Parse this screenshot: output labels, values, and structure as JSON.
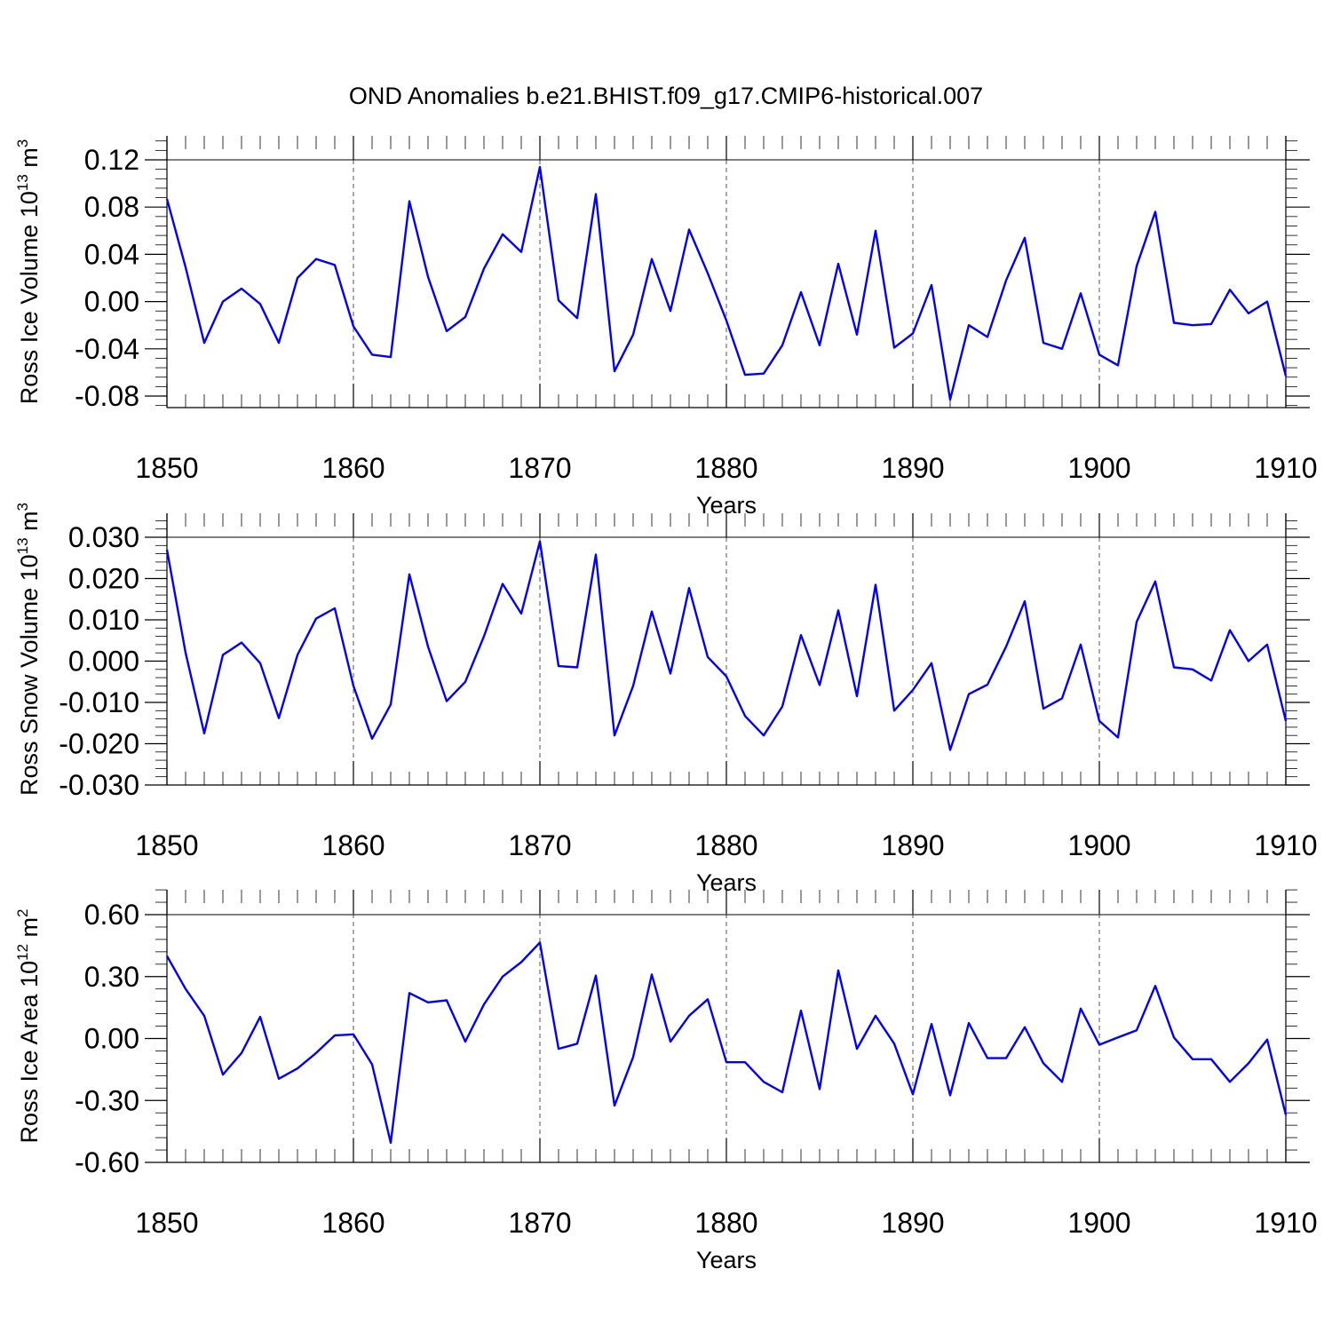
{
  "title": "OND Anomalies b.e21.BHIST.f09_g17.CMIP6-historical.007",
  "colors": {
    "line": "#0000ff",
    "axis": "#000000",
    "grid": "#555555"
  },
  "chart_data": [
    {
      "type": "line",
      "ylabel_main": "Ross Ice Volume 10",
      "ylabel_exp": "13",
      "ylabel_unit": "m",
      "ylabel_unit_exp": "3",
      "xlabel": "Years",
      "xlim": [
        1850,
        1910
      ],
      "ylim": [
        -0.09,
        0.13
      ],
      "xticks": [
        1850,
        1860,
        1870,
        1880,
        1890,
        1900,
        1910
      ],
      "yticks": [
        -0.08,
        -0.04,
        0.0,
        0.04,
        0.08,
        0.12
      ],
      "ytick_labels": [
        "-0.08",
        "-0.04",
        "0.00",
        "0.04",
        "0.08",
        "0.12"
      ],
      "x": [
        1850,
        1851,
        1852,
        1853,
        1854,
        1855,
        1856,
        1857,
        1858,
        1859,
        1860,
        1861,
        1862,
        1863,
        1864,
        1865,
        1866,
        1867,
        1868,
        1869,
        1870,
        1871,
        1872,
        1873,
        1874,
        1875,
        1876,
        1877,
        1878,
        1879,
        1880,
        1881,
        1882,
        1883,
        1884,
        1885,
        1886,
        1887,
        1888,
        1889,
        1890,
        1891,
        1892,
        1893,
        1894,
        1895,
        1896,
        1897,
        1898,
        1899,
        1900,
        1901,
        1902,
        1903,
        1904,
        1905,
        1906,
        1907,
        1908,
        1909,
        1910
      ],
      "values": [
        0.087,
        0.029,
        -0.035,
        0.0,
        0.011,
        -0.002,
        -0.035,
        0.02,
        0.036,
        0.031,
        -0.021,
        -0.045,
        -0.047,
        0.085,
        0.021,
        -0.025,
        -0.013,
        0.028,
        0.057,
        0.042,
        0.114,
        0.001,
        -0.014,
        0.091,
        -0.059,
        -0.028,
        0.036,
        -0.008,
        0.061,
        0.024,
        -0.016,
        -0.062,
        -0.061,
        -0.037,
        0.008,
        -0.037,
        0.032,
        -0.028,
        0.06,
        -0.039,
        -0.027,
        0.014,
        -0.083,
        -0.02,
        -0.03,
        0.018,
        0.054,
        -0.035,
        -0.04,
        0.007,
        -0.045,
        -0.054,
        0.03,
        0.076,
        -0.018,
        -0.02,
        -0.019,
        0.01,
        -0.01,
        0.0,
        -0.063
      ]
    },
    {
      "type": "line",
      "ylabel_main": "Ross Snow Volume 10",
      "ylabel_exp": "13",
      "ylabel_unit": "m",
      "ylabel_unit_exp": "3",
      "xlabel": "Years",
      "xlim": [
        1850,
        1910
      ],
      "ylim": [
        -0.0335,
        0.03
      ],
      "xticks": [
        1850,
        1860,
        1870,
        1880,
        1890,
        1900,
        1910
      ],
      "yticks": [
        -0.03,
        -0.02,
        -0.01,
        0.0,
        0.01,
        0.02,
        0.03
      ],
      "ytick_labels": [
        "-0.030",
        "-0.020",
        "-0.010",
        "0.000",
        "0.010",
        "0.020",
        "0.030"
      ],
      "x": [
        1850,
        1851,
        1852,
        1853,
        1854,
        1855,
        1856,
        1857,
        1858,
        1859,
        1860,
        1861,
        1862,
        1863,
        1864,
        1865,
        1866,
        1867,
        1868,
        1869,
        1870,
        1871,
        1872,
        1873,
        1874,
        1875,
        1876,
        1877,
        1878,
        1879,
        1880,
        1881,
        1882,
        1883,
        1884,
        1885,
        1886,
        1887,
        1888,
        1889,
        1890,
        1891,
        1892,
        1893,
        1894,
        1895,
        1896,
        1897,
        1898,
        1899,
        1900,
        1901,
        1902,
        1903,
        1904,
        1905,
        1906,
        1907,
        1908,
        1909,
        1910
      ],
      "values": [
        0.027,
        0.002,
        -0.0175,
        0.0015,
        0.0045,
        -0.0005,
        -0.0138,
        0.0015,
        0.0103,
        0.0128,
        -0.006,
        -0.0188,
        -0.0105,
        0.021,
        0.0035,
        -0.0097,
        -0.005,
        0.006,
        0.0187,
        0.0115,
        0.029,
        -0.0012,
        -0.0015,
        0.0258,
        -0.018,
        -0.006,
        0.012,
        -0.003,
        0.0177,
        0.001,
        -0.0037,
        -0.0133,
        -0.018,
        -0.011,
        0.0063,
        -0.0058,
        0.0123,
        -0.0085,
        0.0185,
        -0.012,
        -0.007,
        -0.0005,
        -0.0215,
        -0.008,
        -0.0057,
        0.0035,
        0.0145,
        -0.0115,
        -0.009,
        0.004,
        -0.0145,
        -0.0185,
        0.0095,
        0.0193,
        -0.0015,
        -0.002,
        -0.0047,
        0.0075,
        0.0,
        0.004,
        -0.0145
      ]
    },
    {
      "type": "line",
      "ylabel_main": "Ross Ice Area 10",
      "ylabel_exp": "12",
      "ylabel_unit": "m",
      "ylabel_unit_exp": "2",
      "xlabel": "Years",
      "xlim": [
        1850,
        1910
      ],
      "ylim": [
        -0.6,
        0.6
      ],
      "xticks": [
        1850,
        1860,
        1870,
        1880,
        1890,
        1900,
        1910
      ],
      "yticks": [
        -0.6,
        -0.3,
        0.0,
        0.3,
        0.6
      ],
      "ytick_labels": [
        "-0.60",
        "-0.30",
        "0.00",
        "0.30",
        "0.60"
      ],
      "x": [
        1850,
        1851,
        1852,
        1853,
        1854,
        1855,
        1856,
        1857,
        1858,
        1859,
        1860,
        1861,
        1862,
        1863,
        1864,
        1865,
        1866,
        1867,
        1868,
        1869,
        1870,
        1871,
        1872,
        1873,
        1874,
        1875,
        1876,
        1877,
        1878,
        1879,
        1880,
        1881,
        1882,
        1883,
        1884,
        1885,
        1886,
        1887,
        1888,
        1889,
        1890,
        1891,
        1892,
        1893,
        1894,
        1895,
        1896,
        1897,
        1898,
        1899,
        1900,
        1901,
        1902,
        1903,
        1904,
        1905,
        1906,
        1907,
        1908,
        1909,
        1910
      ],
      "values": [
        0.4,
        0.24,
        0.11,
        -0.175,
        -0.07,
        0.105,
        -0.195,
        -0.145,
        -0.07,
        0.015,
        0.02,
        -0.125,
        -0.505,
        0.22,
        0.175,
        0.185,
        -0.015,
        0.165,
        0.3,
        0.37,
        0.465,
        -0.05,
        -0.025,
        0.305,
        -0.325,
        -0.09,
        0.31,
        -0.015,
        0.11,
        0.19,
        -0.115,
        -0.115,
        -0.21,
        -0.26,
        0.135,
        -0.245,
        0.33,
        -0.05,
        0.11,
        -0.025,
        -0.27,
        0.07,
        -0.275,
        0.075,
        -0.095,
        -0.095,
        0.055,
        -0.12,
        -0.21,
        0.145,
        -0.03,
        0.005,
        0.04,
        0.255,
        0.005,
        -0.1,
        -0.1,
        -0.21,
        -0.12,
        -0.005,
        -0.37
      ]
    }
  ]
}
